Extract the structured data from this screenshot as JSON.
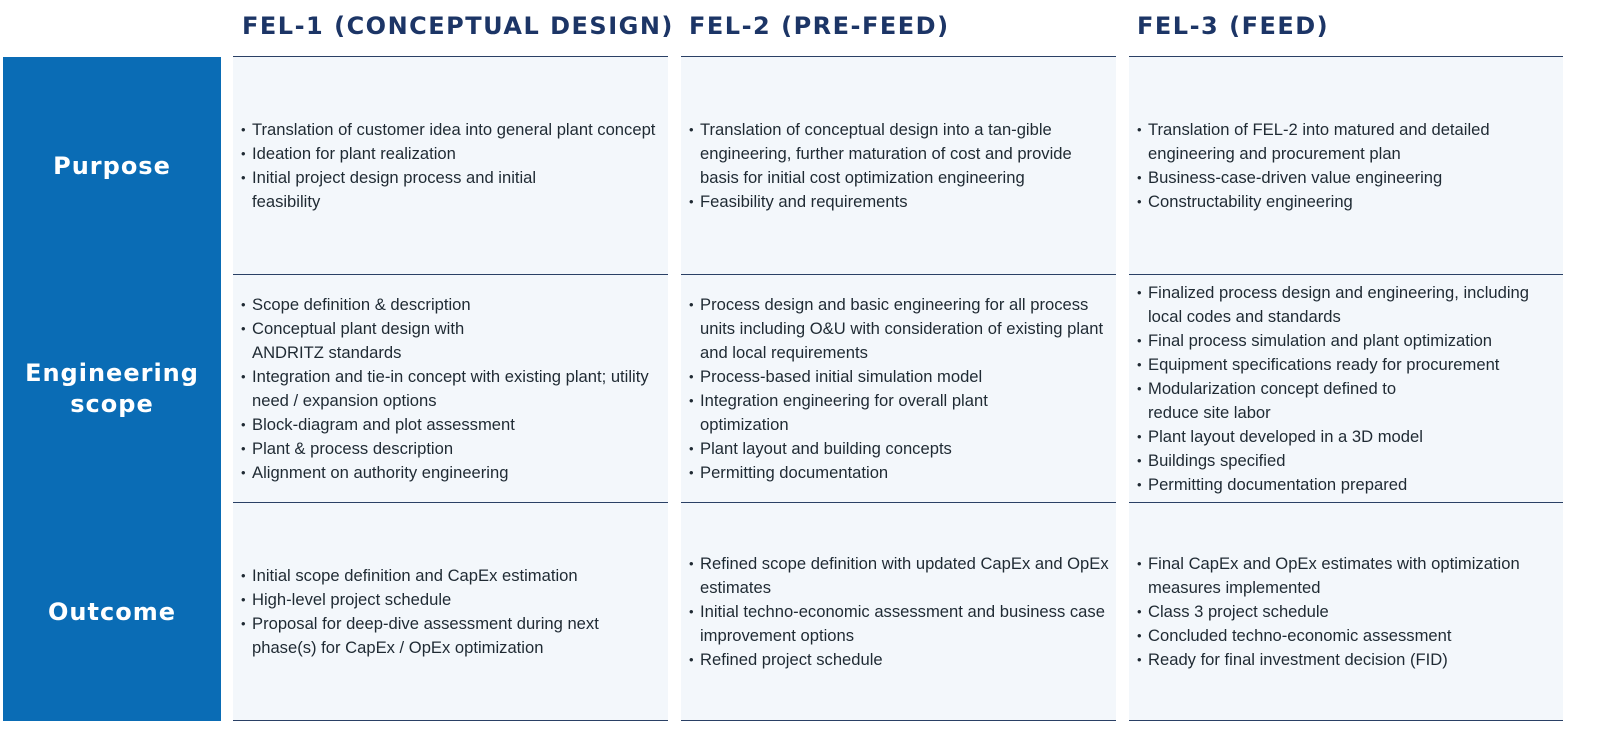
{
  "columns": [
    {
      "heading": "FEL-1 (CONCEPTUAL DESIGN)"
    },
    {
      "heading": "FEL-2 (PRE-FEED)"
    },
    {
      "heading": "FEL-3 (FEED)"
    }
  ],
  "rows": [
    {
      "label": "Purpose",
      "cells": [
        {
          "items": [
            "Translation of customer idea into general plant concept",
            "Ideation for plant realization",
            "Initial project design process and initial feasibility"
          ]
        },
        {
          "items": [
            "Translation of conceptual design into a tan-gible engineering, further maturation of cost and provide basis for initial cost optimization engineering",
            "Feasibility and requirements"
          ]
        },
        {
          "items": [
            "Translation of FEL-2 into matured and detailed engineering and procurement plan",
            "Business-case-driven value engineering",
            "Constructability engineering"
          ]
        }
      ]
    },
    {
      "label": "Engineering scope",
      "cells": [
        {
          "items": [
            "Scope definition & description",
            "Conceptual plant design with ANDRITZ standards",
            "Integration and tie-in concept with existing plant; utility need / expansion options",
            "Block-diagram and plot assessment",
            "Plant & process description",
            "Alignment on authority engineering"
          ]
        },
        {
          "items": [
            "Process design and basic engineering for all process units including O&U with consideration of existing plant and local requirements",
            "Process-based initial simulation model",
            "Integration engineering for overall plant optimization",
            "Plant layout and building concepts",
            "Permitting documentation"
          ]
        },
        {
          "items": [
            "Finalized process design and engineering, including local codes and standards",
            "Final process simulation and plant optimization",
            "Equipment specifications ready for procurement",
            "Modularization concept defined to reduce site labor",
            "Plant layout developed in a 3D model",
            "Buildings specified",
            "Permitting documentation prepared"
          ]
        }
      ]
    },
    {
      "label": "Outcome",
      "cells": [
        {
          "items": [
            "Initial scope definition and CapEx estimation",
            "High-level project schedule",
            "Proposal for deep-dive assessment during next phase(s) for CapEx / OpEx optimization"
          ]
        },
        {
          "items": [
            "Refined scope definition with updated CapEx and OpEx estimates",
            "Initial techno-economic assessment and business case improvement options",
            "Refined project schedule"
          ]
        },
        {
          "items": [
            "Final CapEx and OpEx estimates with optimization measures implemented",
            "Class 3 project schedule",
            "Concluded techno-economic assessment",
            "Ready for final investment decision (FID)"
          ]
        }
      ]
    }
  ],
  "colors": {
    "heading": "#1c3566",
    "label_bg": "#0a6cb5",
    "cell_bg": "#f3f7fb",
    "rule": "#2a4065"
  }
}
